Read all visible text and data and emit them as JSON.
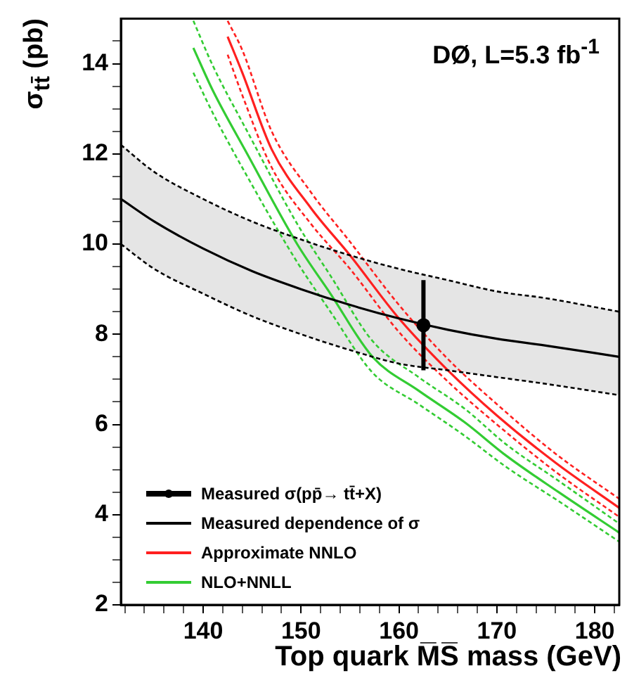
{
  "chart_data": {
    "type": "line",
    "xlabel": "Top quark M̅S̅ mass (GeV)",
    "ylabel": "σ$_{tt̄}$ (pb)",
    "annotations": [
      "DØ, L=5.3 fb$^{-1}$"
    ],
    "xlim": [
      131.6,
      182.5
    ],
    "ylim": [
      2,
      15
    ],
    "xticks": [
      {
        "value": 132,
        "label": null
      },
      {
        "value": 134,
        "label": null
      },
      {
        "value": 136,
        "label": null
      },
      {
        "value": 138,
        "label": null
      },
      140,
      {
        "value": 142,
        "label": null
      },
      {
        "value": 144,
        "label": null
      },
      {
        "value": 146,
        "label": null
      },
      {
        "value": 148,
        "label": null
      },
      150,
      {
        "value": 152,
        "label": null
      },
      {
        "value": 154,
        "label": null
      },
      {
        "value": 156,
        "label": null
      },
      {
        "value": 158,
        "label": null
      },
      160,
      {
        "value": 162,
        "label": null
      },
      {
        "value": 164,
        "label": null
      },
      {
        "value": 166,
        "label": null
      },
      {
        "value": 168,
        "label": null
      },
      170,
      {
        "value": 172,
        "label": null
      },
      {
        "value": 174,
        "label": null
      },
      {
        "value": 176,
        "label": null
      },
      {
        "value": 178,
        "label": null
      },
      180,
      {
        "value": 182,
        "label": null
      }
    ],
    "yticks": [
      2,
      {
        "value": 2.5,
        "label": null
      },
      {
        "value": 3,
        "label": null
      },
      {
        "value": 3.5,
        "label": null
      },
      4,
      {
        "value": 4.5,
        "label": null
      },
      {
        "value": 5,
        "label": null
      },
      {
        "value": 5.5,
        "label": null
      },
      6,
      {
        "value": 6.5,
        "label": null
      },
      {
        "value": 7,
        "label": null
      },
      {
        "value": 7.5,
        "label": null
      },
      8,
      {
        "value": 8.5,
        "label": null
      },
      {
        "value": 9,
        "label": null
      },
      {
        "value": 9.5,
        "label": null
      },
      10,
      {
        "value": 10.5,
        "label": null
      },
      {
        "value": 11,
        "label": null
      },
      {
        "value": 11.5,
        "label": null
      },
      12,
      {
        "value": 12.5,
        "label": null
      },
      {
        "value": 13,
        "label": null
      },
      {
        "value": 13.5,
        "label": null
      },
      14,
      {
        "value": 14.5,
        "label": null
      }
    ],
    "grid": false,
    "legend": "bottom left",
    "series": [
      {
        "name": "Measured σ(pp̄→ tt̄+X)",
        "type": "scatter",
        "color": "#000000",
        "x": [
          162.5
        ],
        "values": [
          8.2
        ],
        "errors": [
          1.0
        ]
      },
      {
        "name": "Measured dependence of σ",
        "color": "#000000",
        "x": [
          131.6,
          135,
          140,
          145,
          150,
          155,
          160,
          165,
          170,
          175,
          182.5
        ],
        "values": [
          11.0,
          10.5,
          9.9,
          9.4,
          9.0,
          8.65,
          8.35,
          8.1,
          7.9,
          7.75,
          7.5
        ],
        "upper": [
          12.2,
          11.6,
          11.0,
          10.5,
          10.1,
          9.75,
          9.45,
          9.2,
          8.95,
          8.8,
          8.5
        ],
        "lower": [
          10.0,
          9.45,
          8.9,
          8.4,
          8.0,
          7.65,
          7.35,
          7.2,
          7.05,
          6.9,
          6.65
        ]
      },
      {
        "color": "#000000",
        "line_style": "dashed",
        "x": [
          131.6,
          135,
          140,
          145,
          150,
          155,
          160,
          165,
          170,
          175,
          182.5
        ],
        "values": [
          12.2,
          11.6,
          11.0,
          10.5,
          10.1,
          9.75,
          9.45,
          9.2,
          8.95,
          8.8,
          8.5
        ]
      },
      {
        "color": "#000000",
        "line_style": "dashed",
        "x": [
          131.6,
          135,
          140,
          145,
          150,
          155,
          160,
          165,
          170,
          175,
          182.5
        ],
        "values": [
          10.0,
          9.45,
          8.9,
          8.4,
          8.0,
          7.65,
          7.35,
          7.2,
          7.05,
          6.9,
          6.65
        ]
      },
      {
        "name": "Approximate NNLO",
        "color": "#ff2020",
        "x": [
          142.5,
          144,
          147,
          151,
          155,
          160,
          165,
          170,
          176,
          182.5
        ],
        "values": [
          14.6,
          13.8,
          12.1,
          10.8,
          9.75,
          8.35,
          7.2,
          6.2,
          5.15,
          4.15
        ]
      },
      {
        "color": "#ff2020",
        "line_style": "dashed",
        "x": [
          142.5,
          144,
          147,
          151,
          155,
          160,
          165,
          170,
          176,
          182.5
        ],
        "values": [
          14.95,
          14.3,
          12.5,
          11.15,
          10.05,
          8.65,
          7.45,
          6.45,
          5.35,
          4.35
        ]
      },
      {
        "color": "#ff2020",
        "line_style": "dashed",
        "x": [
          142.5,
          144,
          147,
          151,
          155,
          160,
          165,
          170,
          176,
          182.5
        ],
        "values": [
          14.2,
          13.3,
          11.7,
          10.45,
          9.45,
          8.05,
          6.95,
          6.0,
          4.95,
          3.95
        ]
      },
      {
        "name": "NLO+NNLL",
        "color": "#33cc33",
        "x": [
          139,
          141,
          144.5,
          149.6,
          153,
          157.3,
          162,
          166.7,
          171,
          176.3,
          182.5
        ],
        "values": [
          14.35,
          13.4,
          12,
          10,
          8.9,
          7.5,
          6.75,
          6.05,
          5.3,
          4.5,
          3.6
        ]
      },
      {
        "color": "#33cc33",
        "line_style": "dashed",
        "x": [
          139,
          141,
          144.5,
          149.6,
          153,
          157.3,
          162,
          166.7,
          171,
          176.3,
          182.5
        ],
        "values": [
          14.95,
          13.95,
          12.5,
          10.45,
          9.3,
          7.85,
          7.05,
          6.35,
          5.55,
          4.75,
          3.8
        ]
      },
      {
        "color": "#33cc33",
        "line_style": "dashed",
        "x": [
          139,
          141,
          144.5,
          149.6,
          153,
          157.3,
          162,
          166.7,
          171,
          176.3,
          182.5
        ],
        "values": [
          13.8,
          12.9,
          11.5,
          9.6,
          8.5,
          7.15,
          6.45,
          5.75,
          5.05,
          4.3,
          3.4
        ]
      }
    ]
  }
}
